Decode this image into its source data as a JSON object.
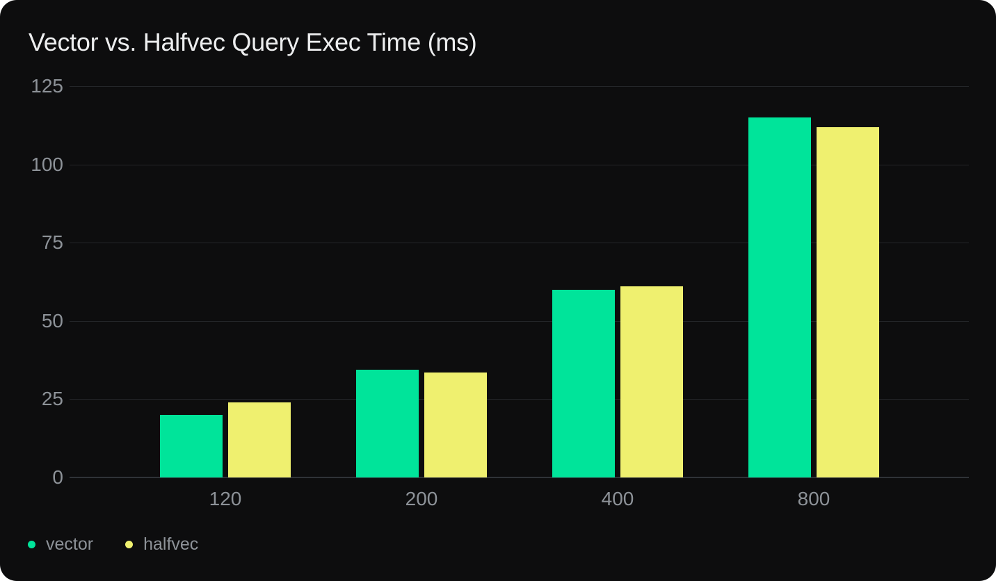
{
  "title": "Vector vs. Halfvec Query Exec Time (ms)",
  "colors": {
    "page_bg": "#FFFFFF",
    "card_bg": "#0D0D0E",
    "gridline": "#242629",
    "baseline": "#2F3237",
    "axis_label": "#8D9298",
    "title_text": "#EDEEEF",
    "legend_text": "#8D9298",
    "vector": "#00E49A",
    "halfvec": "#EFF06F"
  },
  "chart_data": {
    "type": "bar",
    "title": "Vector vs. Halfvec Query Exec Time (ms)",
    "categories": [
      "120",
      "200",
      "400",
      "800"
    ],
    "series": [
      {
        "name": "vector",
        "color": "#00E49A",
        "values": [
          20,
          34.5,
          60,
          115
        ]
      },
      {
        "name": "halfvec",
        "color": "#EFF06F",
        "values": [
          24,
          33.5,
          61,
          112
        ]
      }
    ],
    "xlabel": "",
    "ylabel": "",
    "y_ticks": [
      0,
      25,
      50,
      75,
      100,
      125
    ],
    "ylim": [
      0,
      125
    ],
    "grid": true,
    "legend_position": "bottom-left"
  },
  "legend": {
    "items": [
      {
        "label": "vector",
        "color": "#00E49A"
      },
      {
        "label": "halfvec",
        "color": "#EFF06F"
      }
    ]
  }
}
